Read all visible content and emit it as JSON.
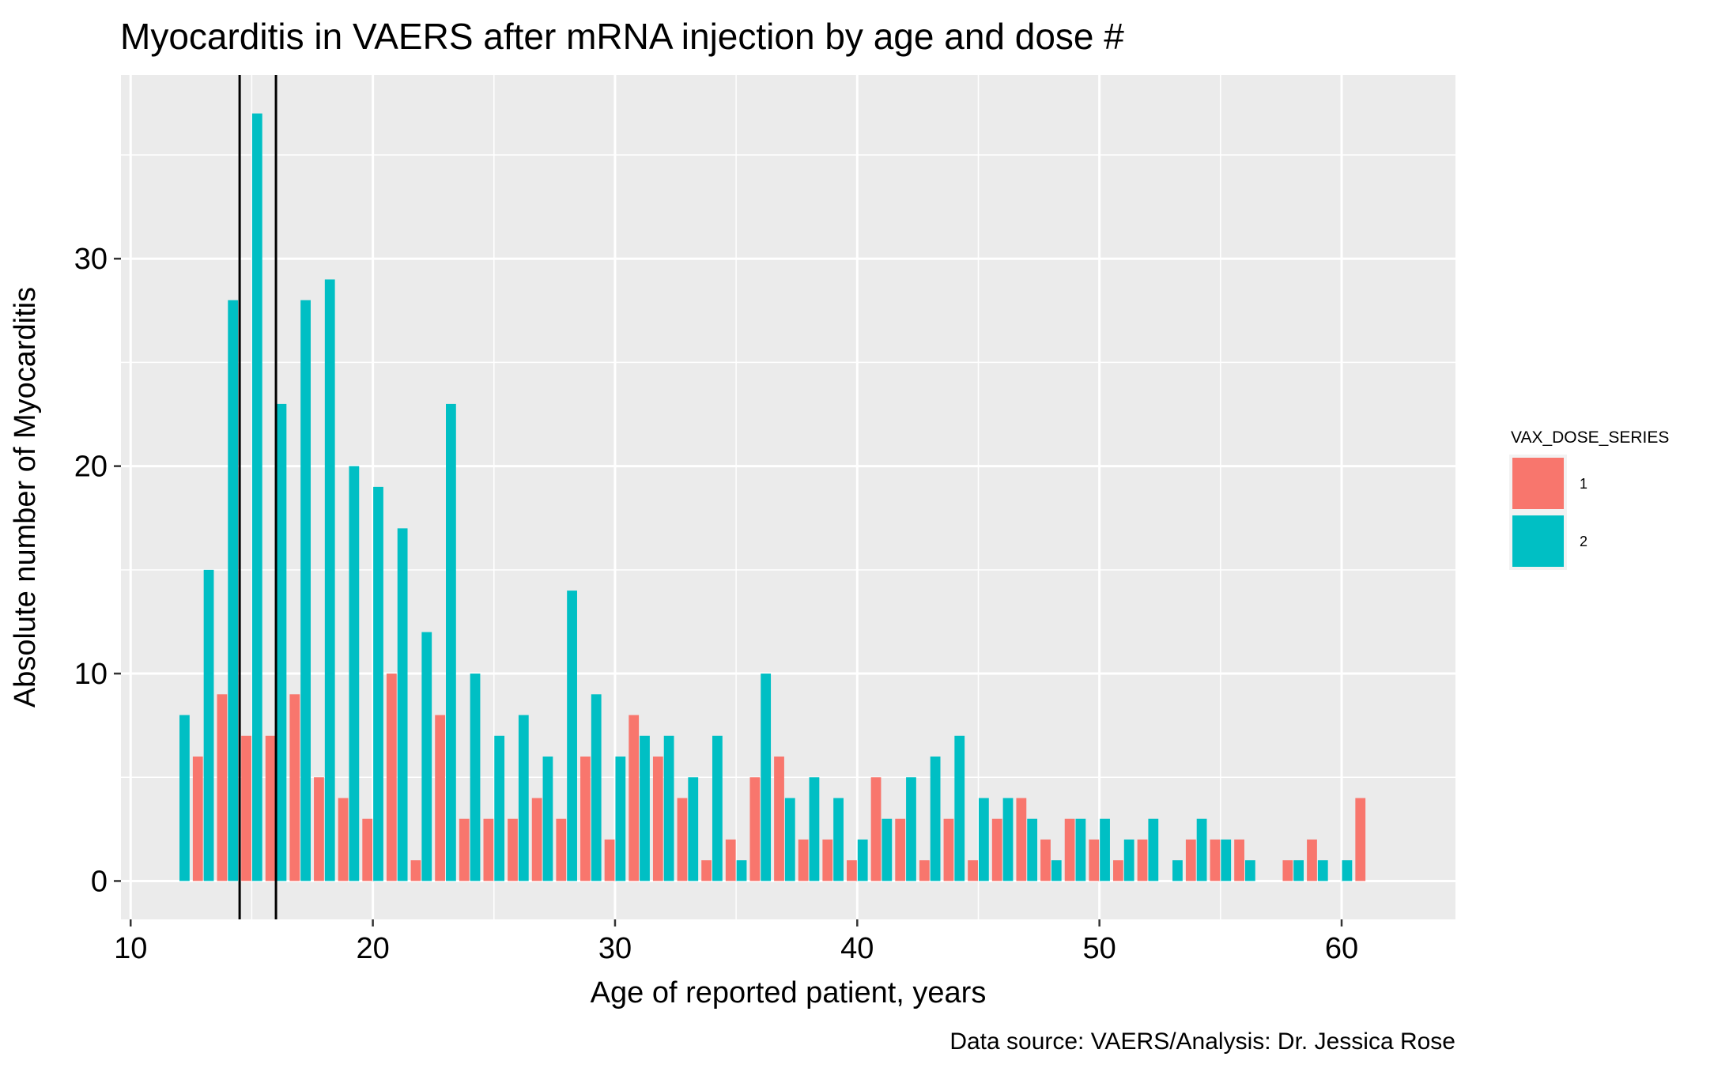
{
  "chart_data": {
    "type": "bar",
    "title": "Myocarditis in VAERS after mRNA injection by age and dose #",
    "xlabel": "Age of reported patient, years",
    "ylabel": "Absolute number of Myocarditis",
    "caption": "Data source: VAERS/Analysis: Dr. Jessica Rose",
    "xlim": [
      9.6,
      64.7
    ],
    "ylim": [
      -1.85,
      38.85
    ],
    "x_ticks": [
      10,
      20,
      30,
      40,
      50,
      60
    ],
    "y_ticks": [
      0,
      10,
      20,
      30
    ],
    "vertical_lines": [
      14.5,
      16
    ],
    "grid": true,
    "legend": {
      "title": "VAX_DOSE_SERIES",
      "position": "right",
      "entries": [
        {
          "label": "1",
          "color": "#F8766D"
        },
        {
          "label": "2",
          "color": "#00BFC4"
        }
      ]
    },
    "series": [
      {
        "name": "1",
        "color": "#F8766D",
        "points": [
          [
            12,
            0
          ],
          [
            13,
            6
          ],
          [
            14,
            9
          ],
          [
            15,
            7
          ],
          [
            16,
            7
          ],
          [
            17,
            9
          ],
          [
            18,
            5
          ],
          [
            19,
            4
          ],
          [
            20,
            3
          ],
          [
            21,
            10
          ],
          [
            22,
            1
          ],
          [
            23,
            8
          ],
          [
            24,
            3
          ],
          [
            25,
            3
          ],
          [
            26,
            3
          ],
          [
            27,
            4
          ],
          [
            28,
            3
          ],
          [
            29,
            6
          ],
          [
            30,
            2
          ],
          [
            31,
            8
          ],
          [
            32,
            6
          ],
          [
            33,
            4
          ],
          [
            34,
            1
          ],
          [
            35,
            2
          ],
          [
            36,
            5
          ],
          [
            37,
            6
          ],
          [
            38,
            2
          ],
          [
            39,
            2
          ],
          [
            40,
            1
          ],
          [
            41,
            5
          ],
          [
            42,
            3
          ],
          [
            43,
            1
          ],
          [
            44,
            3
          ],
          [
            45,
            1
          ],
          [
            46,
            3
          ],
          [
            47,
            4
          ],
          [
            48,
            2
          ],
          [
            49,
            3
          ],
          [
            50,
            2
          ],
          [
            51,
            1
          ],
          [
            52,
            2
          ],
          [
            53,
            0
          ],
          [
            54,
            2
          ],
          [
            55,
            2
          ],
          [
            56,
            2
          ],
          [
            57,
            0
          ],
          [
            58,
            1
          ],
          [
            59,
            2
          ],
          [
            60,
            0
          ],
          [
            61,
            4
          ]
        ]
      },
      {
        "name": "2",
        "color": "#00BFC4",
        "points": [
          [
            12,
            8
          ],
          [
            13,
            15
          ],
          [
            14,
            28
          ],
          [
            15,
            37
          ],
          [
            16,
            23
          ],
          [
            17,
            28
          ],
          [
            18,
            29
          ],
          [
            19,
            20
          ],
          [
            20,
            19
          ],
          [
            21,
            17
          ],
          [
            22,
            12
          ],
          [
            23,
            23
          ],
          [
            24,
            10
          ],
          [
            25,
            7
          ],
          [
            26,
            8
          ],
          [
            27,
            6
          ],
          [
            28,
            14
          ],
          [
            29,
            9
          ],
          [
            30,
            6
          ],
          [
            31,
            7
          ],
          [
            32,
            7
          ],
          [
            33,
            5
          ],
          [
            34,
            7
          ],
          [
            35,
            1
          ],
          [
            36,
            10
          ],
          [
            37,
            4
          ],
          [
            38,
            5
          ],
          [
            39,
            4
          ],
          [
            40,
            2
          ],
          [
            41,
            3
          ],
          [
            42,
            5
          ],
          [
            43,
            6
          ],
          [
            44,
            7
          ],
          [
            45,
            4
          ],
          [
            46,
            4
          ],
          [
            47,
            3
          ],
          [
            48,
            1
          ],
          [
            49,
            3
          ],
          [
            50,
            3
          ],
          [
            51,
            2
          ],
          [
            52,
            3
          ],
          [
            53,
            1
          ],
          [
            54,
            3
          ],
          [
            55,
            2
          ],
          [
            56,
            1
          ],
          [
            57,
            0
          ],
          [
            58,
            1
          ],
          [
            59,
            1
          ],
          [
            60,
            1
          ],
          [
            61,
            0
          ]
        ]
      }
    ]
  }
}
